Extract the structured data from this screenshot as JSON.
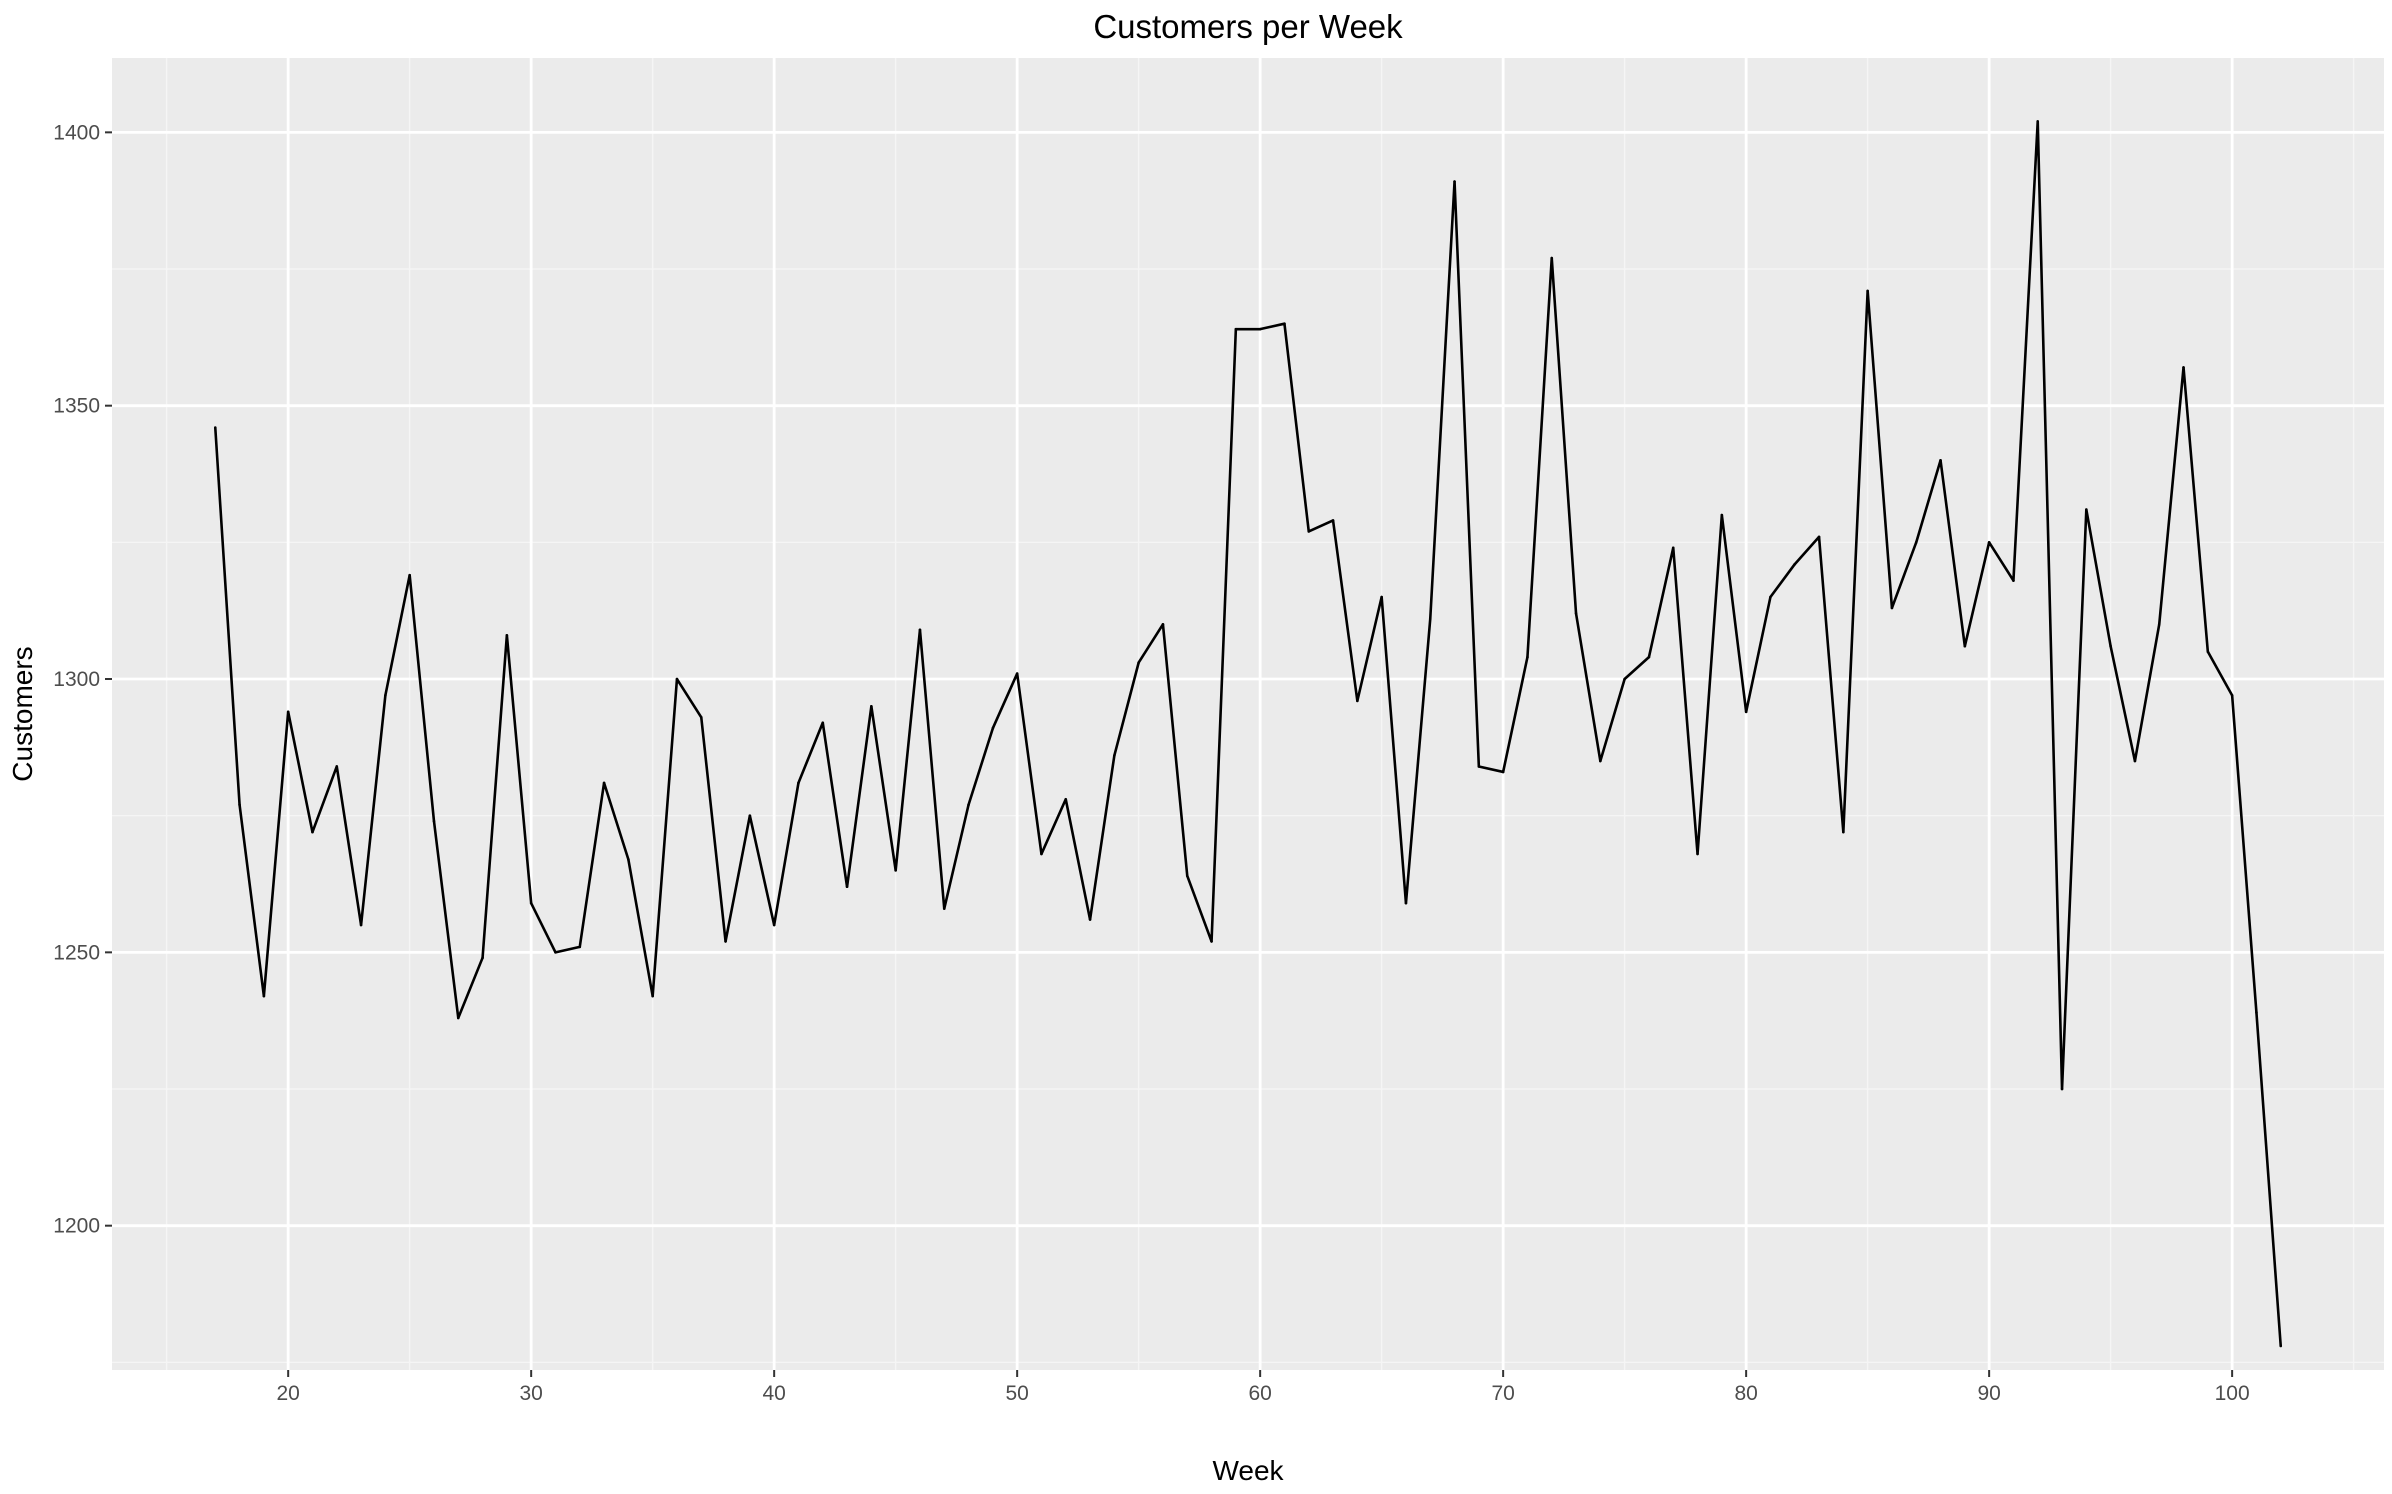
{
  "chart_data": {
    "type": "line",
    "title": "Customers per Week",
    "xlabel": "Week",
    "ylabel": "Customers",
    "xlim": [
      12.75,
      106.25
    ],
    "ylim": [
      1173.6,
      1413.6
    ],
    "x_ticks": [
      20,
      30,
      40,
      50,
      60,
      70,
      80,
      90,
      100
    ],
    "y_ticks": [
      1200,
      1250,
      1300,
      1350,
      1400
    ],
    "x_minor_ticks": [
      15,
      25,
      35,
      45,
      55,
      65,
      75,
      85,
      95,
      105
    ],
    "y_minor_ticks": [
      1175,
      1225,
      1275,
      1325,
      1375
    ],
    "grid": true,
    "colors": {
      "panel_background": "#ebebeb",
      "grid_major": "#ffffff",
      "grid_minor": "#f5f5f5",
      "line": "#000000",
      "tick_text": "#4d4d4d",
      "tick_mark": "#333333"
    },
    "series": [
      {
        "x": [
          17,
          18,
          19,
          20,
          21,
          22,
          23,
          24,
          25,
          26,
          27,
          28,
          29,
          30,
          31,
          32,
          33,
          34,
          35,
          36,
          37,
          38,
          39,
          40,
          41,
          42,
          43,
          44,
          45,
          46,
          47,
          48,
          49,
          50,
          51,
          52,
          53,
          54,
          55,
          56,
          57,
          58,
          59,
          60,
          61,
          62,
          63,
          64,
          65,
          66,
          67,
          68,
          69,
          70,
          71,
          72,
          73,
          74,
          75,
          76,
          77,
          78,
          79,
          80,
          81,
          82,
          83,
          84,
          85,
          86,
          87,
          88,
          89,
          90,
          91,
          92,
          93,
          94,
          95,
          96,
          97,
          98,
          99,
          100,
          101,
          102
        ],
        "values": [
          1346,
          1277,
          1242,
          1294,
          1272,
          1284,
          1255,
          1297,
          1319,
          1274,
          1238,
          1249,
          1308,
          1259,
          1250,
          1251,
          1281,
          1267,
          1242,
          1300,
          1293,
          1252,
          1275,
          1255,
          1281,
          1292,
          1262,
          1295,
          1265,
          1309,
          1258,
          1277,
          1291,
          1301,
          1268,
          1278,
          1256,
          1286,
          1303,
          1310,
          1264,
          1252,
          1364,
          1364,
          1365,
          1327,
          1329,
          1296,
          1315,
          1259,
          1311,
          1391,
          1284,
          1283,
          1304,
          1377,
          1312,
          1285,
          1300,
          1304,
          1324,
          1268,
          1330,
          1294,
          1315,
          1321,
          1326,
          1272,
          1371,
          1313,
          1325,
          1340,
          1306,
          1325,
          1318,
          1402,
          1225,
          1331,
          1306,
          1285,
          1310,
          1357,
          1305,
          1297,
          1239,
          1178
        ]
      }
    ]
  }
}
